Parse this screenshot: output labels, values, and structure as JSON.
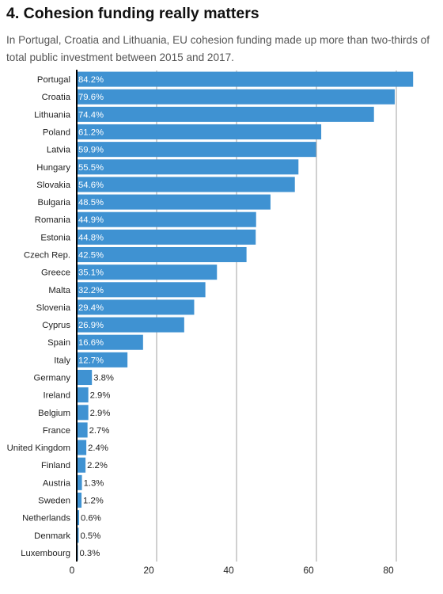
{
  "title": "4. Cohesion funding really matters",
  "subtitle": "In Portugal, Croatia and Lithuania, EU cohesion funding made up more than two-thirds of total public investment between 2015 and 2017.",
  "colors": {
    "bar": "#3f92d2",
    "axis": "#000000",
    "grid": "#8a8a8a"
  },
  "chart_data": {
    "type": "bar",
    "orientation": "horizontal",
    "title": "4. Cohesion funding really matters",
    "subtitle": "In Portugal, Croatia and Lithuania, EU cohesion funding made up more than two-thirds of total public investment between 2015 and 2017.",
    "categories": [
      "Portugal",
      "Croatia",
      "Lithuania",
      "Poland",
      "Latvia",
      "Hungary",
      "Slovakia",
      "Bulgaria",
      "Romania",
      "Estonia",
      "Czech Rep.",
      "Greece",
      "Malta",
      "Slovenia",
      "Cyprus",
      "Spain",
      "Italy",
      "Germany",
      "Ireland",
      "Belgium",
      "France",
      "United Kingdom",
      "Finland",
      "Austria",
      "Sweden",
      "Netherlands",
      "Denmark",
      "Luxembourg"
    ],
    "values": [
      84.2,
      79.6,
      74.4,
      61.2,
      59.9,
      55.5,
      54.6,
      48.5,
      44.9,
      44.8,
      42.5,
      35.1,
      32.2,
      29.4,
      26.9,
      16.6,
      12.7,
      3.8,
      2.9,
      2.9,
      2.7,
      2.4,
      2.2,
      1.3,
      1.2,
      0.6,
      0.5,
      0.3
    ],
    "value_labels": [
      "84.2%",
      "79.6%",
      "74.4%",
      "61.2%",
      "59.9%",
      "55.5%",
      "54.6%",
      "48.5%",
      "44.9%",
      "44.8%",
      "42.5%",
      "35.1%",
      "32.2%",
      "29.4%",
      "26.9%",
      "16.6%",
      "12.7%",
      "3.8%",
      "2.9%",
      "2.9%",
      "2.7%",
      "2.4%",
      "2.2%",
      "1.3%",
      "1.2%",
      "0.6%",
      "0.5%",
      "0.3%"
    ],
    "xlim": [
      0,
      87
    ],
    "xticks": [
      0,
      20,
      40,
      60,
      80
    ],
    "xtick_labels": [
      "0",
      "20",
      "40",
      "60",
      "80"
    ],
    "grid": true,
    "xlabel": "",
    "ylabel": ""
  }
}
